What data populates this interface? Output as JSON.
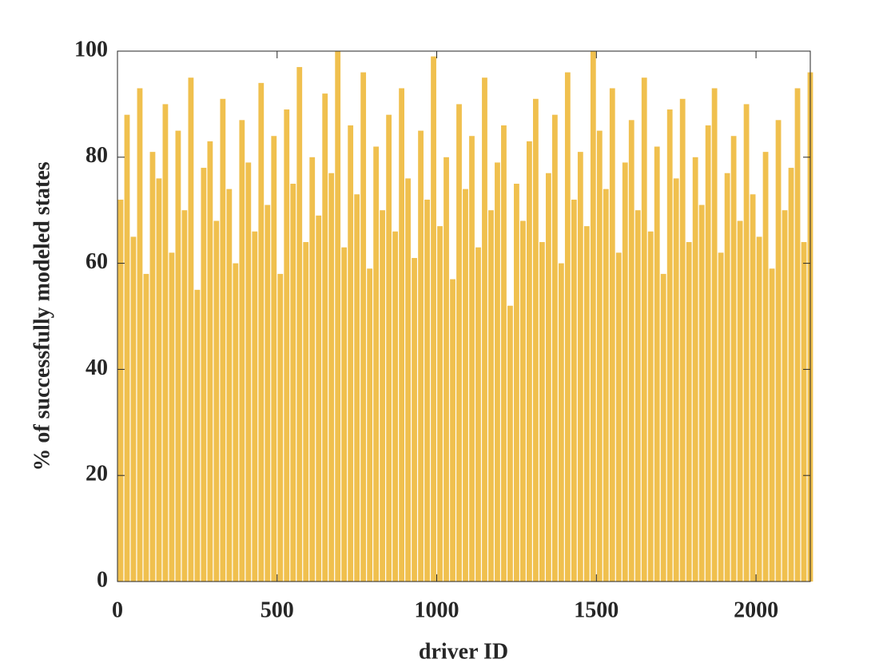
{
  "chart_data": {
    "type": "bar",
    "xlabel": "driver ID",
    "ylabel": "% of successfully modeled states",
    "x": [
      10,
      30,
      50,
      70,
      90,
      110,
      130,
      150,
      170,
      190,
      210,
      230,
      250,
      270,
      290,
      310,
      330,
      350,
      370,
      390,
      410,
      430,
      450,
      470,
      490,
      510,
      530,
      550,
      570,
      590,
      610,
      630,
      650,
      670,
      690,
      710,
      730,
      750,
      770,
      790,
      810,
      830,
      850,
      870,
      890,
      910,
      930,
      950,
      970,
      990,
      1010,
      1030,
      1050,
      1070,
      1090,
      1110,
      1130,
      1150,
      1170,
      1190,
      1210,
      1230,
      1250,
      1270,
      1290,
      1310,
      1330,
      1350,
      1370,
      1390,
      1410,
      1430,
      1450,
      1470,
      1490,
      1510,
      1530,
      1550,
      1570,
      1590,
      1610,
      1630,
      1650,
      1670,
      1690,
      1710,
      1730,
      1750,
      1770,
      1790,
      1810,
      1830,
      1850,
      1870,
      1890,
      1910,
      1930,
      1950,
      1970,
      1990,
      2010,
      2030,
      2050,
      2070,
      2090,
      2110,
      2130,
      2150,
      2170
    ],
    "values": [
      72,
      88,
      65,
      93,
      58,
      81,
      76,
      90,
      62,
      85,
      70,
      95,
      55,
      78,
      83,
      68,
      91,
      74,
      60,
      87,
      79,
      66,
      94,
      71,
      84,
      58,
      89,
      75,
      97,
      64,
      80,
      69,
      92,
      77,
      100,
      63,
      86,
      73,
      96,
      59,
      82,
      70,
      88,
      66,
      93,
      76,
      61,
      85,
      72,
      99,
      67,
      80,
      57,
      90,
      74,
      84,
      63,
      95,
      70,
      79,
      86,
      52,
      75,
      68,
      83,
      91,
      64,
      77,
      88,
      60,
      96,
      72,
      81,
      67,
      100,
      85,
      74,
      93,
      62,
      79,
      87,
      70,
      95,
      66,
      82,
      58,
      89,
      76,
      91,
      64,
      80,
      71,
      86,
      93,
      62,
      77,
      84,
      68,
      90,
      73,
      65,
      81,
      59,
      87,
      70,
      78,
      93,
      64,
      96
    ],
    "color": "#f0c04e",
    "xlim": [
      0,
      2170
    ],
    "xticks": [
      0,
      500,
      1000,
      1500,
      2000
    ],
    "ylim": [
      0,
      100
    ],
    "yticks": [
      0,
      20,
      40,
      60,
      80,
      100
    ]
  }
}
